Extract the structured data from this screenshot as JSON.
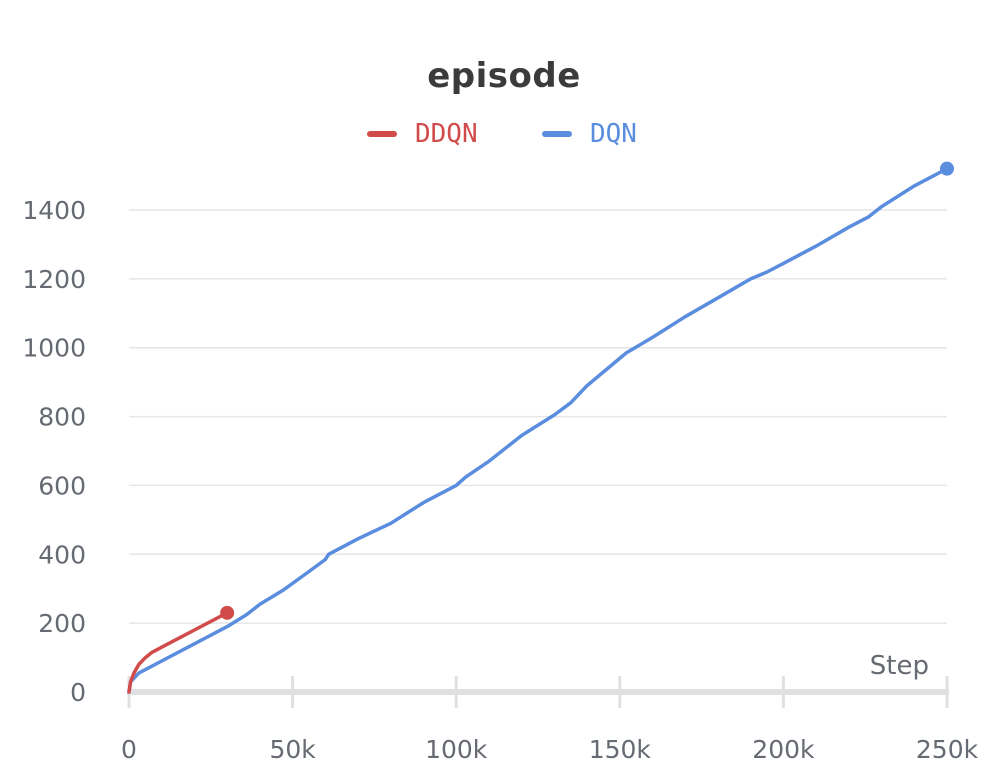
{
  "chart_data": {
    "type": "line",
    "title": "episode",
    "xlabel": "Step",
    "ylabel": "",
    "xlim": [
      0,
      250000
    ],
    "ylim": [
      0,
      1400
    ],
    "x_ticks": [
      0,
      50000,
      100000,
      150000,
      200000,
      250000
    ],
    "x_tick_labels": [
      "0",
      "50k",
      "100k",
      "150k",
      "200k",
      "250k"
    ],
    "y_ticks": [
      0,
      200,
      400,
      600,
      800,
      1000,
      1200,
      1400
    ],
    "y_tick_labels": [
      "0",
      "200",
      "400",
      "600",
      "800",
      "1000",
      "1200",
      "1400"
    ],
    "grid": "horizontal",
    "legend": "top-center",
    "series": [
      {
        "name": "DDQN",
        "color": "#d24b4b",
        "x": [
          0,
          500,
          1500,
          3000,
          5000,
          7000,
          10000,
          15000,
          20000,
          25000,
          30000
        ],
        "y": [
          0,
          30,
          55,
          80,
          100,
          115,
          130,
          155,
          180,
          205,
          230
        ]
      },
      {
        "name": "DQN",
        "color": "#5b8ddf",
        "x": [
          0,
          500,
          3000,
          10000,
          20000,
          30000,
          36000,
          40000,
          47000,
          55000,
          60000,
          61000,
          70000,
          80000,
          90000,
          100000,
          103000,
          110000,
          120000,
          130000,
          135000,
          140000,
          152000,
          160000,
          170000,
          180000,
          190000,
          195000,
          200000,
          210000,
          220000,
          226000,
          230000,
          240000,
          250000
        ],
        "y": [
          0,
          30,
          55,
          90,
          140,
          190,
          225,
          255,
          295,
          350,
          385,
          400,
          445,
          490,
          550,
          600,
          625,
          670,
          745,
          805,
          840,
          890,
          985,
          1030,
          1090,
          1145,
          1200,
          1220,
          1245,
          1295,
          1350,
          1380,
          1410,
          1470,
          1520
        ]
      }
    ]
  }
}
